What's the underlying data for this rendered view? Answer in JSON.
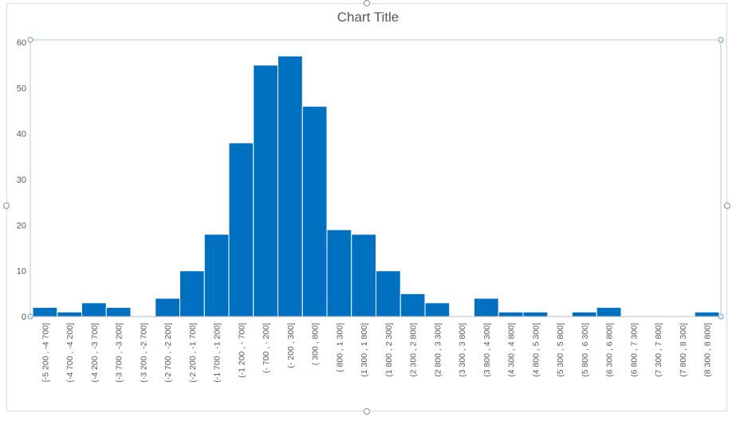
{
  "chart_data": {
    "type": "bar",
    "title": "Chart Title",
    "xlabel": "",
    "ylabel": "",
    "ylim": [
      0,
      60
    ],
    "yticks": [
      "0",
      "10",
      "20",
      "30",
      "40",
      "50",
      "60"
    ],
    "grid": false,
    "legend": "none",
    "bar_color": "#0070c0",
    "categories": [
      "[-5 200 , -4 700]",
      "(-4 700 , -4 200]",
      "(-4 200 , -3 700]",
      "(-3 700 , -3 200]",
      "(-3 200 , -2 700]",
      "(-2 700 , -2 200]",
      "(-2 200 , -1 700]",
      "(-1 700 , -1 200]",
      "(-1 200 , - 700]",
      "(- 700 , - 200]",
      "(- 200 , 300]",
      "( 300 , 800]",
      "( 800 , 1 300]",
      "(1 300 , 1 800]",
      "(1 800 , 2 300]",
      "(2 300 , 2 800]",
      "(2 800 , 3 300]",
      "(3 300 , 3 800]",
      "(3 800 , 4 300]",
      "(4 300 , 4 800]",
      "(4 800 , 5 300]",
      "(5 300 , 5 800]",
      "(5 800 , 6 300]",
      "(6 300 , 6 800]",
      "(6 800 , 7 300]",
      "(7 300 , 7 800]",
      "(7 800 , 8 300]",
      "(8 300 , 8 800]"
    ],
    "values": [
      2,
      1,
      3,
      2,
      0,
      4,
      10,
      18,
      38,
      55,
      57,
      46,
      19,
      18,
      10,
      5,
      3,
      0,
      4,
      1,
      1,
      0,
      1,
      2,
      0,
      0,
      0,
      1
    ]
  }
}
